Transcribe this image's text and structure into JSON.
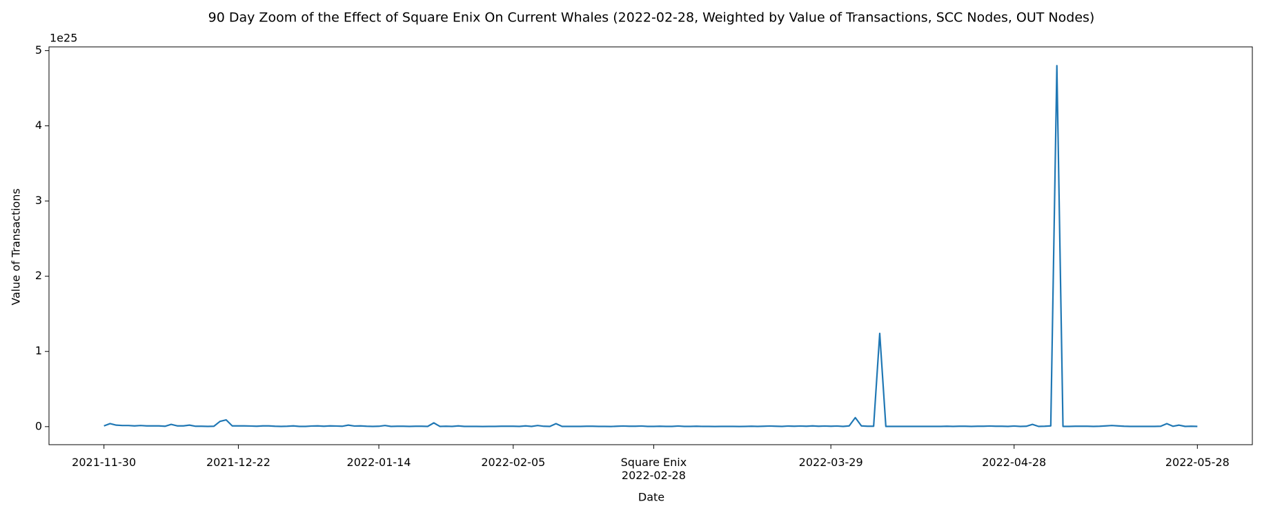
{
  "chart_data": {
    "type": "line",
    "title": "90 Day Zoom of the Effect of Square Enix On Current Whales (2022-02-28, Weighted by Value of Transactions, SCC Nodes, OUT Nodes)",
    "x_label": "Date",
    "y_label": "Value of Transactions",
    "y_offset_label": "1e25",
    "x": [
      "2021-11-30",
      "2021-12-01",
      "2021-12-02",
      "2021-12-03",
      "2021-12-04",
      "2021-12-05",
      "2021-12-06",
      "2021-12-07",
      "2021-12-08",
      "2021-12-09",
      "2021-12-10",
      "2021-12-11",
      "2021-12-12",
      "2021-12-13",
      "2021-12-14",
      "2021-12-15",
      "2021-12-16",
      "2021-12-17",
      "2021-12-18",
      "2021-12-19",
      "2021-12-20",
      "2021-12-21",
      "2021-12-22",
      "2021-12-23",
      "2021-12-24",
      "2021-12-25",
      "2021-12-26",
      "2021-12-27",
      "2021-12-28",
      "2021-12-29",
      "2021-12-30",
      "2021-12-31",
      "2022-01-01",
      "2022-01-02",
      "2022-01-03",
      "2022-01-04",
      "2022-01-05",
      "2022-01-06",
      "2022-01-07",
      "2022-01-08",
      "2022-01-09",
      "2022-01-10",
      "2022-01-11",
      "2022-01-12",
      "2022-01-13",
      "2022-01-14",
      "2022-01-15",
      "2022-01-16",
      "2022-01-17",
      "2022-01-18",
      "2022-01-19",
      "2022-01-20",
      "2022-01-21",
      "2022-01-22",
      "2022-01-23",
      "2022-01-24",
      "2022-01-25",
      "2022-01-26",
      "2022-01-27",
      "2022-01-28",
      "2022-01-29",
      "2022-01-30",
      "2022-01-31",
      "2022-02-01",
      "2022-02-02",
      "2022-02-03",
      "2022-02-04",
      "2022-02-05",
      "2022-02-06",
      "2022-02-07",
      "2022-02-08",
      "2022-02-09",
      "2022-02-10",
      "2022-02-11",
      "2022-02-12",
      "2022-02-13",
      "2022-02-14",
      "2022-02-15",
      "2022-02-16",
      "2022-02-17",
      "2022-02-18",
      "2022-02-19",
      "2022-02-20",
      "2022-02-21",
      "2022-02-22",
      "2022-02-23",
      "2022-02-24",
      "2022-02-25",
      "2022-02-26",
      "2022-02-27",
      "2022-02-28",
      "2022-03-01",
      "2022-03-02",
      "2022-03-03",
      "2022-03-04",
      "2022-03-05",
      "2022-03-06",
      "2022-03-07",
      "2022-03-08",
      "2022-03-09",
      "2022-03-10",
      "2022-03-11",
      "2022-03-12",
      "2022-03-13",
      "2022-03-14",
      "2022-03-15",
      "2022-03-16",
      "2022-03-17",
      "2022-03-18",
      "2022-03-19",
      "2022-03-20",
      "2022-03-21",
      "2022-03-22",
      "2022-03-23",
      "2022-03-24",
      "2022-03-25",
      "2022-03-26",
      "2022-03-27",
      "2022-03-28",
      "2022-03-29",
      "2022-03-30",
      "2022-03-31",
      "2022-04-01",
      "2022-04-02",
      "2022-04-03",
      "2022-04-04",
      "2022-04-05",
      "2022-04-06",
      "2022-04-07",
      "2022-04-08",
      "2022-04-09",
      "2022-04-10",
      "2022-04-11",
      "2022-04-12",
      "2022-04-13",
      "2022-04-14",
      "2022-04-15",
      "2022-04-16",
      "2022-04-17",
      "2022-04-18",
      "2022-04-19",
      "2022-04-20",
      "2022-04-21",
      "2022-04-22",
      "2022-04-23",
      "2022-04-24",
      "2022-04-25",
      "2022-04-26",
      "2022-04-27",
      "2022-04-28",
      "2022-04-29",
      "2022-04-30",
      "2022-05-01",
      "2022-05-02",
      "2022-05-03",
      "2022-05-04",
      "2022-05-05",
      "2022-05-06",
      "2022-05-07",
      "2022-05-08",
      "2022-05-09",
      "2022-05-10",
      "2022-05-11",
      "2022-05-12",
      "2022-05-13",
      "2022-05-14",
      "2022-05-15",
      "2022-05-16",
      "2022-05-17",
      "2022-05-18",
      "2022-05-19",
      "2022-05-20",
      "2022-05-21",
      "2022-05-22",
      "2022-05-23",
      "2022-05-24",
      "2022-05-25",
      "2022-05-26",
      "2022-05-27",
      "2022-05-28"
    ],
    "series": [
      {
        "color": "#1f77b4",
        "values": [
          0.01,
          0.04,
          0.02,
          0.015,
          0.015,
          0.01,
          0.015,
          0.01,
          0.01,
          0.01,
          0.005,
          0.03,
          0.01,
          0.01,
          0.02,
          0.005,
          0.005,
          0.003,
          0.005,
          0.07,
          0.09,
          0.01,
          0.01,
          0.01,
          0.008,
          0.005,
          0.01,
          0.01,
          0.005,
          0.003,
          0.005,
          0.01,
          0.003,
          0.003,
          0.008,
          0.01,
          0.005,
          0.01,
          0.008,
          0.005,
          0.02,
          0.008,
          0.01,
          0.005,
          0.003,
          0.005,
          0.015,
          0.003,
          0.005,
          0.005,
          0.003,
          0.005,
          0.005,
          0.003,
          0.05,
          0.003,
          0.005,
          0.003,
          0.01,
          0.003,
          0.003,
          0.003,
          0.002,
          0.003,
          0.003,
          0.005,
          0.005,
          0.005,
          0.003,
          0.01,
          0.003,
          0.015,
          0.005,
          0.003,
          0.04,
          0.003,
          0.003,
          0.003,
          0.003,
          0.005,
          0.005,
          0.003,
          0.003,
          0.002,
          0.005,
          0.008,
          0.005,
          0.005,
          0.008,
          0.003,
          0.003,
          0.005,
          0.003,
          0.003,
          0.008,
          0.003,
          0.003,
          0.005,
          0.003,
          0.003,
          0.002,
          0.003,
          0.003,
          0.003,
          0.002,
          0.003,
          0.005,
          0.003,
          0.005,
          0.008,
          0.005,
          0.003,
          0.008,
          0.005,
          0.008,
          0.005,
          0.01,
          0.005,
          0.008,
          0.005,
          0.008,
          0.003,
          0.01,
          0.12,
          0.01,
          0.005,
          0.005,
          1.24,
          0.003,
          0.003,
          0.003,
          0.003,
          0.003,
          0.003,
          0.003,
          0.003,
          0.003,
          0.003,
          0.005,
          0.003,
          0.005,
          0.005,
          0.003,
          0.005,
          0.005,
          0.008,
          0.005,
          0.005,
          0.003,
          0.008,
          0.003,
          0.005,
          0.03,
          0.003,
          0.005,
          0.01,
          4.8,
          0.003,
          0.003,
          0.005,
          0.005,
          0.005,
          0.003,
          0.005,
          0.01,
          0.015,
          0.01,
          0.005,
          0.003,
          0.003,
          0.003,
          0.003,
          0.003,
          0.005,
          0.04,
          0.005,
          0.02,
          0.003,
          0.005,
          0.003
        ]
      }
    ],
    "xlim": [
      "2021-11-21",
      "2022-06-06"
    ],
    "xticks": [
      "2021-11-30",
      "2021-12-22",
      "2022-01-14",
      "2022-02-05",
      {
        "value": "2022-02-28",
        "label": "Square Enix\n2022-02-28"
      },
      "2022-03-29",
      "2022-04-28",
      "2022-05-28"
    ],
    "ylim": [
      -0.24,
      5.05
    ],
    "yticks": [
      0,
      1,
      2,
      3,
      4,
      5
    ],
    "grid": false
  }
}
